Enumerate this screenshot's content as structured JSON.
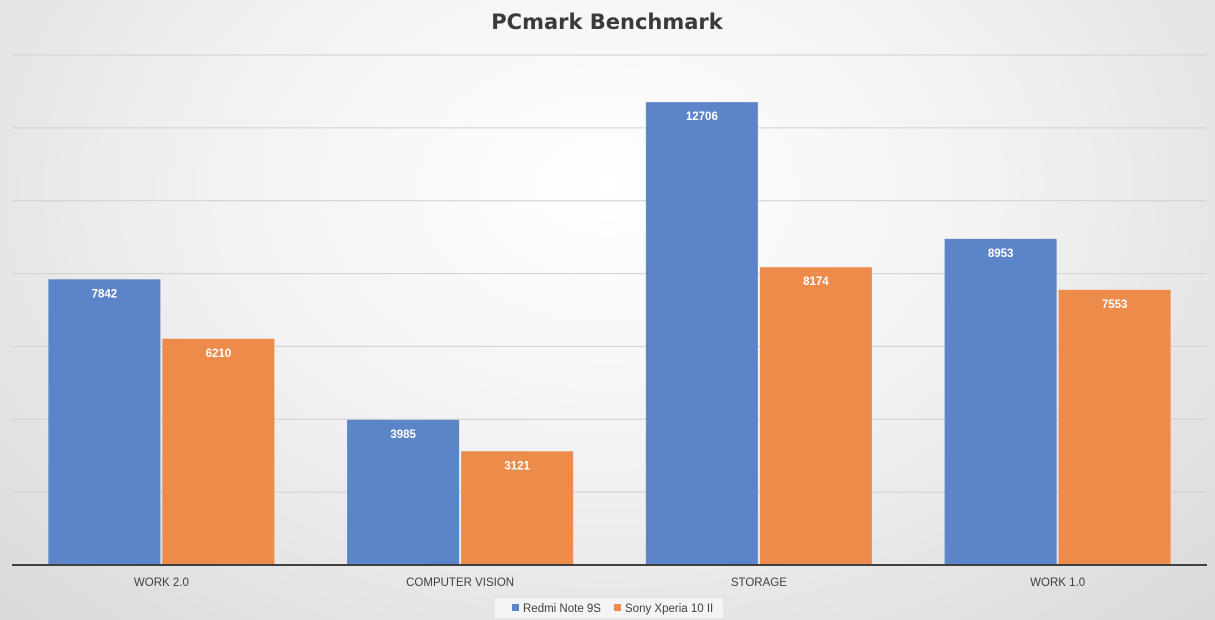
{
  "chart_data": {
    "type": "bar",
    "title": "PCmark Benchmark",
    "categories": [
      "WORK 2.0",
      "COMPUTER VISION",
      "STORAGE",
      "WORK 1.0"
    ],
    "series": [
      {
        "name": "Redmi Note 9S",
        "values": [
          7842,
          3985,
          12706,
          8953
        ],
        "color": "#5b84c9"
      },
      {
        "name": "Sony Xperia 10 II",
        "values": [
          6210,
          3121,
          8174,
          7553
        ],
        "color": "#ed8b4a"
      }
    ],
    "ylim": [
      0,
      14000
    ],
    "grid": true,
    "legend_position": "bottom",
    "xlabel": "",
    "ylabel": ""
  }
}
